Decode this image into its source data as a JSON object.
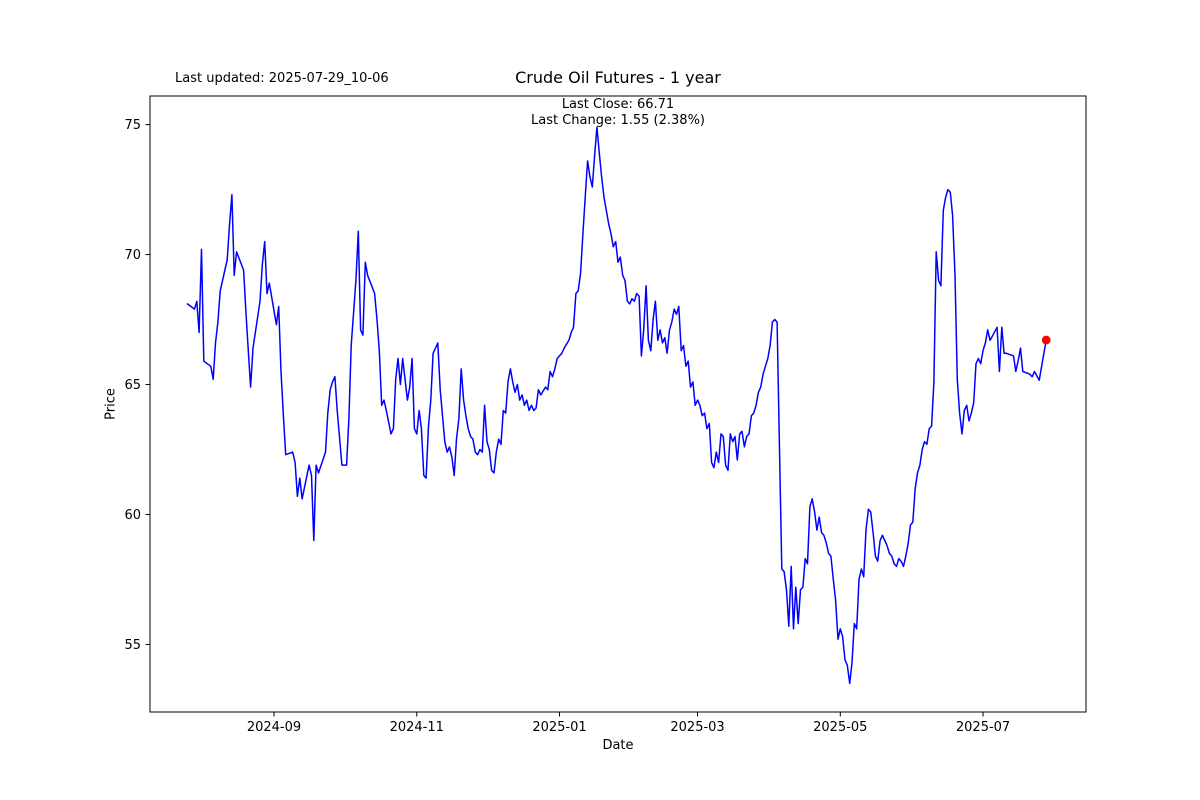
{
  "figure": {
    "last_updated": "Last updated: 2025-07-29_10-06",
    "title": "Crude Oil Futures - 1 year",
    "annotation_line1": "Last Close: 66.71",
    "annotation_line2": "Last Change: 1.55 (2.38%)",
    "background_color": "#ffffff",
    "text_color": "#000000"
  },
  "chart_data": {
    "type": "line",
    "title": "Crude Oil Futures - 1 year",
    "xlabel": "Date",
    "ylabel": "Price",
    "grid": false,
    "legend": "none",
    "line_color": "#0000ff",
    "line_width": 1.5,
    "marker_color": "#ff0000",
    "axes_color": "#000000",
    "x_tick_labels": [
      "2024-09",
      "2024-11",
      "2025-01",
      "2025-03",
      "2025-05",
      "2025-07"
    ],
    "x_tick_dates": [
      "2024-09-01",
      "2024-11-01",
      "2025-01-01",
      "2025-03-01",
      "2025-05-01",
      "2025-07-01"
    ],
    "y_ticks": [
      55,
      60,
      65,
      70,
      75
    ],
    "xlim": [
      "2024-07-10",
      "2025-08-14"
    ],
    "ylim": [
      52.4,
      76.1
    ],
    "last_close": 66.71,
    "last_change": 1.55,
    "last_change_pct": 2.38,
    "series": [
      {
        "name": "Close",
        "dates": [
          "2024-07-26",
          "2024-07-29",
          "2024-07-30",
          "2024-07-31",
          "2024-08-01",
          "2024-08-02",
          "2024-08-05",
          "2024-08-06",
          "2024-08-07",
          "2024-08-08",
          "2024-08-09",
          "2024-08-12",
          "2024-08-13",
          "2024-08-14",
          "2024-08-15",
          "2024-08-16",
          "2024-08-19",
          "2024-08-20",
          "2024-08-21",
          "2024-08-22",
          "2024-08-23",
          "2024-08-26",
          "2024-08-27",
          "2024-08-28",
          "2024-08-29",
          "2024-08-30",
          "2024-09-02",
          "2024-09-03",
          "2024-09-04",
          "2024-09-05",
          "2024-09-06",
          "2024-09-09",
          "2024-09-10",
          "2024-09-11",
          "2024-09-12",
          "2024-09-13",
          "2024-09-16",
          "2024-09-17",
          "2024-09-18",
          "2024-09-19",
          "2024-09-20",
          "2024-09-23",
          "2024-09-24",
          "2024-09-25",
          "2024-09-26",
          "2024-09-27",
          "2024-09-28",
          "2024-09-30",
          "2024-10-01",
          "2024-10-02",
          "2024-10-03",
          "2024-10-04",
          "2024-10-06",
          "2024-10-07",
          "2024-10-08",
          "2024-10-09",
          "2024-10-10",
          "2024-10-11",
          "2024-10-14",
          "2024-10-15",
          "2024-10-16",
          "2024-10-17",
          "2024-10-18",
          "2024-10-19",
          "2024-10-21",
          "2024-10-22",
          "2024-10-23",
          "2024-10-24",
          "2024-10-25",
          "2024-10-26",
          "2024-10-28",
          "2024-10-29",
          "2024-10-30",
          "2024-10-31",
          "2024-11-01",
          "2024-11-02",
          "2024-11-03",
          "2024-11-04",
          "2024-11-05",
          "2024-11-06",
          "2024-11-07",
          "2024-11-08",
          "2024-11-09",
          "2024-11-10",
          "2024-11-11",
          "2024-11-12",
          "2024-11-13",
          "2024-11-14",
          "2024-11-15",
          "2024-11-16",
          "2024-11-17",
          "2024-11-18",
          "2024-11-19",
          "2024-11-20",
          "2024-11-21",
          "2024-11-22",
          "2024-11-23",
          "2024-11-24",
          "2024-11-25",
          "2024-11-26",
          "2024-11-27",
          "2024-11-28",
          "2024-11-29",
          "2024-11-30",
          "2024-12-01",
          "2024-12-02",
          "2024-12-03",
          "2024-12-04",
          "2024-12-05",
          "2024-12-06",
          "2024-12-07",
          "2024-12-08",
          "2024-12-09",
          "2024-12-10",
          "2024-12-11",
          "2024-12-12",
          "2024-12-13",
          "2024-12-14",
          "2024-12-15",
          "2024-12-16",
          "2024-12-17",
          "2024-12-18",
          "2024-12-19",
          "2024-12-20",
          "2024-12-21",
          "2024-12-22",
          "2024-12-23",
          "2024-12-24",
          "2024-12-26",
          "2024-12-27",
          "2024-12-28",
          "2024-12-29",
          "2024-12-30",
          "2024-12-31",
          "2025-01-02",
          "2025-01-03",
          "2025-01-05",
          "2025-01-06",
          "2025-01-07",
          "2025-01-08",
          "2025-01-09",
          "2025-01-10",
          "2025-01-11",
          "2025-01-12",
          "2025-01-13",
          "2025-01-14",
          "2025-01-15",
          "2025-01-16",
          "2025-01-17",
          "2025-01-18",
          "2025-01-19",
          "2025-01-20",
          "2025-01-21",
          "2025-01-22",
          "2025-01-23",
          "2025-01-24",
          "2025-01-25",
          "2025-01-26",
          "2025-01-27",
          "2025-01-28",
          "2025-01-29",
          "2025-01-30",
          "2025-01-31",
          "2025-02-01",
          "2025-02-02",
          "2025-02-03",
          "2025-02-04",
          "2025-02-05",
          "2025-02-06",
          "2025-02-07",
          "2025-02-08",
          "2025-02-09",
          "2025-02-10",
          "2025-02-11",
          "2025-02-12",
          "2025-02-13",
          "2025-02-14",
          "2025-02-15",
          "2025-02-16",
          "2025-02-17",
          "2025-02-18",
          "2025-02-19",
          "2025-02-20",
          "2025-02-21",
          "2025-02-22",
          "2025-02-23",
          "2025-02-24",
          "2025-02-25",
          "2025-02-26",
          "2025-02-27",
          "2025-02-28",
          "2025-03-01",
          "2025-03-02",
          "2025-03-03",
          "2025-03-04",
          "2025-03-05",
          "2025-03-06",
          "2025-03-07",
          "2025-03-08",
          "2025-03-09",
          "2025-03-10",
          "2025-03-11",
          "2025-03-12",
          "2025-03-13",
          "2025-03-14",
          "2025-03-15",
          "2025-03-16",
          "2025-03-17",
          "2025-03-18",
          "2025-03-19",
          "2025-03-20",
          "2025-03-21",
          "2025-03-22",
          "2025-03-23",
          "2025-03-24",
          "2025-03-25",
          "2025-03-26",
          "2025-03-27",
          "2025-03-28",
          "2025-03-29",
          "2025-03-30",
          "2025-03-31",
          "2025-04-01",
          "2025-04-02",
          "2025-04-03",
          "2025-04-04",
          "2025-04-05",
          "2025-04-06",
          "2025-04-07",
          "2025-04-08",
          "2025-04-09",
          "2025-04-10",
          "2025-04-11",
          "2025-04-12",
          "2025-04-13",
          "2025-04-14",
          "2025-04-15",
          "2025-04-16",
          "2025-04-17",
          "2025-04-18",
          "2025-04-19",
          "2025-04-20",
          "2025-04-21",
          "2025-04-22",
          "2025-04-23",
          "2025-04-24",
          "2025-04-25",
          "2025-04-26",
          "2025-04-27",
          "2025-04-28",
          "2025-04-29",
          "2025-04-30",
          "2025-05-01",
          "2025-05-02",
          "2025-05-03",
          "2025-05-04",
          "2025-05-05",
          "2025-05-06",
          "2025-05-07",
          "2025-05-08",
          "2025-05-09",
          "2025-05-10",
          "2025-05-11",
          "2025-05-12",
          "2025-05-13",
          "2025-05-14",
          "2025-05-15",
          "2025-05-16",
          "2025-05-17",
          "2025-05-18",
          "2025-05-19",
          "2025-05-20",
          "2025-05-21",
          "2025-05-22",
          "2025-05-23",
          "2025-05-24",
          "2025-05-25",
          "2025-05-26",
          "2025-05-27",
          "2025-05-28",
          "2025-05-29",
          "2025-05-30",
          "2025-05-31",
          "2025-06-01",
          "2025-06-02",
          "2025-06-03",
          "2025-06-04",
          "2025-06-05",
          "2025-06-06",
          "2025-06-07",
          "2025-06-08",
          "2025-06-09",
          "2025-06-10",
          "2025-06-11",
          "2025-06-12",
          "2025-06-13",
          "2025-06-14",
          "2025-06-15",
          "2025-06-16",
          "2025-06-17",
          "2025-06-18",
          "2025-06-19",
          "2025-06-20",
          "2025-06-21",
          "2025-06-22",
          "2025-06-23",
          "2025-06-24",
          "2025-06-25",
          "2025-06-26",
          "2025-06-27",
          "2025-06-28",
          "2025-06-29",
          "2025-06-30",
          "2025-07-01",
          "2025-07-02",
          "2025-07-03",
          "2025-07-04",
          "2025-07-07",
          "2025-07-08",
          "2025-07-09",
          "2025-07-10",
          "2025-07-11",
          "2025-07-14",
          "2025-07-15",
          "2025-07-16",
          "2025-07-17",
          "2025-07-18",
          "2025-07-21",
          "2025-07-22",
          "2025-07-23",
          "2025-07-25",
          "2025-07-28"
        ],
        "values": [
          68.1,
          67.9,
          68.2,
          67.0,
          70.2,
          65.9,
          65.7,
          65.2,
          66.6,
          67.4,
          68.6,
          69.8,
          71.2,
          72.3,
          69.2,
          70.1,
          69.4,
          67.8,
          66.3,
          64.9,
          66.4,
          68.2,
          69.6,
          70.5,
          68.5,
          68.9,
          67.3,
          68.0,
          65.5,
          63.8,
          62.3,
          62.4,
          62.0,
          60.7,
          61.4,
          60.6,
          61.9,
          61.5,
          59.0,
          61.9,
          61.6,
          62.4,
          63.9,
          64.8,
          65.1,
          65.3,
          64.0,
          61.9,
          61.9,
          61.9,
          63.7,
          66.5,
          69.0,
          70.9,
          67.1,
          66.9,
          69.7,
          69.2,
          68.5,
          67.5,
          66.3,
          64.2,
          64.4,
          64.0,
          63.1,
          63.3,
          65.2,
          66.0,
          65.0,
          66.0,
          64.4,
          64.9,
          66.0,
          63.3,
          63.1,
          64.0,
          63.3,
          61.5,
          61.4,
          63.4,
          64.4,
          66.2,
          66.4,
          66.6,
          64.8,
          63.8,
          62.8,
          62.4,
          62.6,
          62.2,
          61.5,
          62.9,
          63.7,
          65.6,
          64.4,
          63.8,
          63.3,
          63.0,
          62.9,
          62.4,
          62.3,
          62.5,
          62.4,
          64.2,
          62.8,
          62.5,
          61.7,
          61.6,
          62.4,
          62.9,
          62.7,
          64.0,
          63.9,
          65.1,
          65.6,
          65.1,
          64.7,
          65.0,
          64.4,
          64.6,
          64.2,
          64.4,
          64.0,
          64.2,
          64.0,
          64.1,
          64.8,
          64.6,
          64.9,
          64.8,
          65.5,
          65.3,
          65.6,
          66.0,
          66.2,
          66.4,
          66.7,
          67.0,
          67.2,
          68.5,
          68.6,
          69.3,
          70.8,
          72.2,
          73.6,
          73.0,
          72.6,
          73.8,
          74.9,
          73.9,
          73.0,
          72.2,
          71.7,
          71.2,
          70.8,
          70.3,
          70.5,
          69.7,
          69.9,
          69.2,
          69.0,
          68.2,
          68.1,
          68.3,
          68.2,
          68.5,
          68.4,
          66.1,
          67.1,
          68.8,
          66.7,
          66.3,
          67.5,
          68.2,
          66.7,
          67.1,
          66.6,
          66.8,
          66.2,
          67.1,
          67.4,
          67.9,
          67.7,
          68.0,
          66.3,
          66.5,
          65.7,
          65.9,
          64.9,
          65.1,
          64.2,
          64.4,
          64.2,
          63.8,
          63.9,
          63.3,
          63.5,
          62.0,
          61.8,
          62.4,
          62.0,
          63.1,
          63.0,
          61.9,
          61.7,
          63.1,
          62.8,
          63.0,
          62.1,
          63.1,
          63.2,
          62.6,
          63.0,
          63.1,
          63.8,
          63.9,
          64.2,
          64.7,
          64.9,
          65.4,
          65.7,
          66.0,
          66.5,
          67.4,
          67.5,
          67.4,
          62.5,
          57.9,
          57.8,
          57.1,
          55.7,
          58.0,
          55.6,
          57.2,
          55.8,
          57.1,
          57.2,
          58.3,
          58.1,
          60.3,
          60.6,
          60.1,
          59.4,
          59.9,
          59.3,
          59.2,
          58.9,
          58.5,
          58.4,
          57.5,
          56.7,
          55.2,
          55.6,
          55.3,
          54.4,
          54.2,
          53.5,
          54.3,
          55.8,
          55.6,
          57.5,
          57.9,
          57.6,
          59.4,
          60.2,
          60.1,
          59.3,
          58.4,
          58.2,
          59.0,
          59.2,
          59.0,
          58.8,
          58.5,
          58.4,
          58.1,
          58.0,
          58.3,
          58.2,
          58.0,
          58.4,
          58.9,
          59.6,
          59.7,
          61.0,
          61.6,
          61.9,
          62.5,
          62.8,
          62.7,
          63.3,
          63.4,
          65.1,
          70.1,
          69.0,
          68.8,
          71.7,
          72.2,
          72.5,
          72.4,
          71.5,
          69.2,
          65.2,
          63.9,
          63.1,
          64.0,
          64.2,
          63.6,
          63.9,
          64.3,
          65.8,
          66.0,
          65.8,
          66.3,
          66.6,
          67.1,
          66.7,
          67.2,
          65.5,
          67.2,
          66.2,
          66.2,
          66.1,
          65.5,
          65.9,
          66.4,
          65.5,
          65.4,
          65.3,
          65.5,
          65.16,
          66.71
        ]
      }
    ]
  }
}
